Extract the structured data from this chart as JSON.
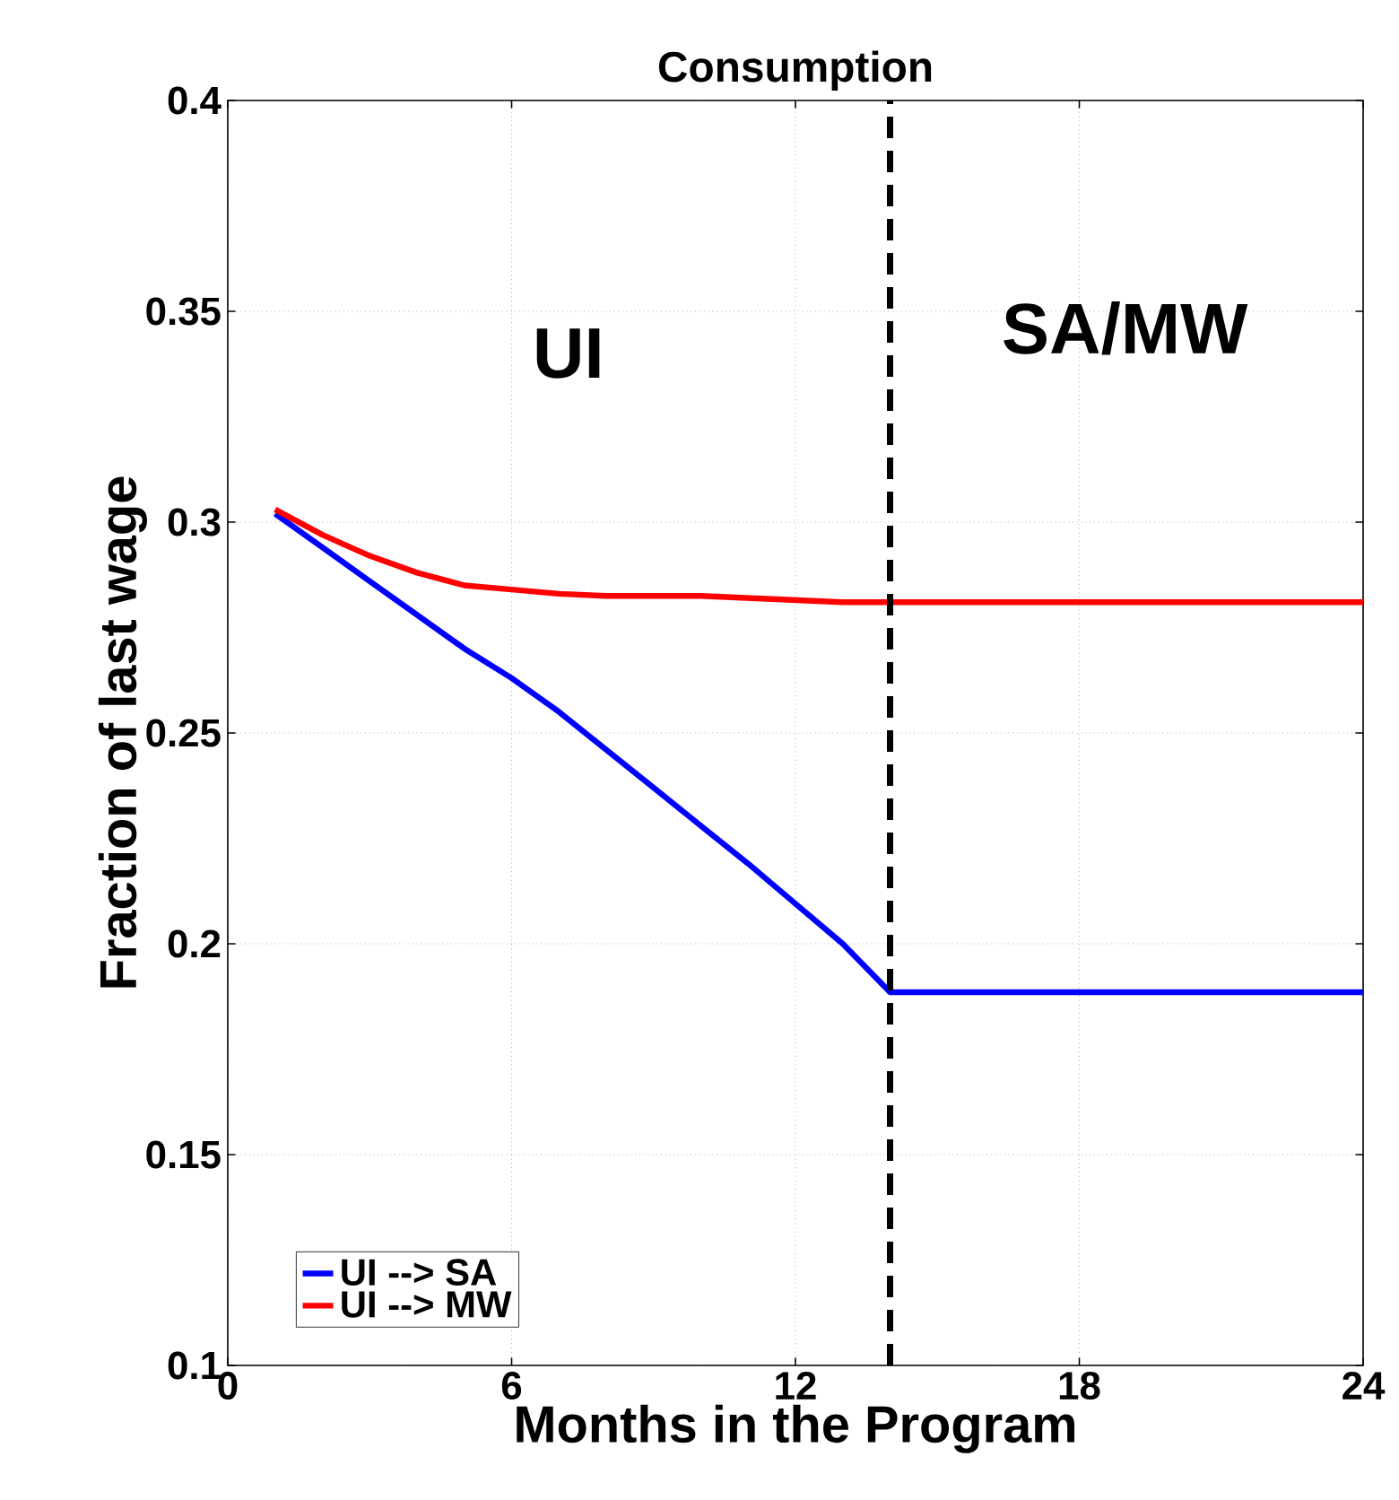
{
  "chart_data": {
    "type": "line",
    "title": "Consumption",
    "xlabel": "Months in the Program",
    "ylabel": "Fraction of last wage",
    "x": [
      1,
      2,
      3,
      4,
      5,
      6,
      7,
      8,
      9,
      10,
      11,
      12,
      13,
      14,
      24
    ],
    "series": [
      {
        "name": "UI --> SA",
        "color": "#0000ff",
        "values": [
          0.302,
          0.294,
          0.286,
          0.278,
          0.27,
          0.263,
          0.255,
          0.246,
          0.237,
          0.228,
          0.219,
          0.2095,
          0.2,
          0.1885,
          0.1885
        ]
      },
      {
        "name": "UI --> MW",
        "color": "#ff0000",
        "values": [
          0.303,
          0.297,
          0.292,
          0.288,
          0.285,
          0.284,
          0.283,
          0.2825,
          0.2825,
          0.2825,
          0.282,
          0.2815,
          0.281,
          0.281,
          0.281
        ]
      }
    ],
    "xlim": [
      0,
      24
    ],
    "xticks": [
      0,
      6,
      12,
      18,
      24
    ],
    "ylim": [
      0.1,
      0.4
    ],
    "yticks": [
      0.1,
      0.15,
      0.2,
      0.25,
      0.3,
      0.35,
      0.4
    ],
    "grid": true,
    "legend": "bottom left",
    "line_style": "solid",
    "marker": "none",
    "ref_lines": [
      {
        "axis": "x",
        "value": 14,
        "color": "#000000",
        "line_style": "dashed"
      }
    ],
    "annotations": [
      "UI",
      "SA/MW"
    ]
  }
}
